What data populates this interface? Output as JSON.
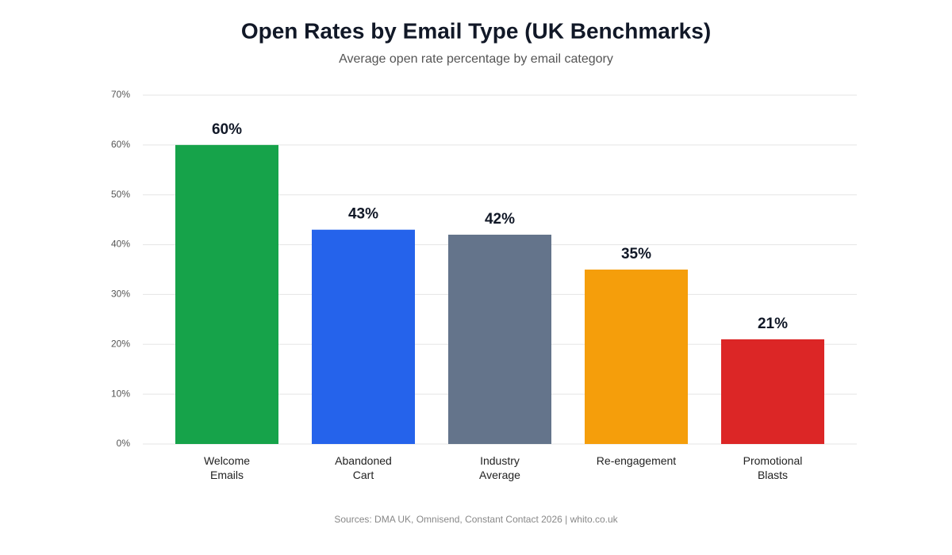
{
  "chart_data": {
    "type": "bar",
    "title": "Open Rates by Email Type (UK Benchmarks)",
    "subtitle": "Average open rate percentage by email category",
    "source": "Sources: DMA UK, Omnisend, Constant Contact 2026 | whito.co.uk",
    "categories": [
      "Welcome\nEmails",
      "Abandoned\nCart",
      "Industry\nAverage",
      "Re-engagement",
      "Promotional\nBlasts"
    ],
    "values": [
      60,
      43,
      42,
      35,
      21
    ],
    "value_labels": [
      "60%",
      "43%",
      "42%",
      "35%",
      "21%"
    ],
    "colors": [
      "#16a34a",
      "#2563eb",
      "#64748b",
      "#f59e0b",
      "#dc2626"
    ],
    "ylim": [
      0,
      70
    ],
    "yticks": [
      {
        "value": 0,
        "label": "0%"
      },
      {
        "value": 10,
        "label": "10%"
      },
      {
        "value": 20,
        "label": "20%"
      },
      {
        "value": 30,
        "label": "30%"
      },
      {
        "value": 40,
        "label": "40%"
      },
      {
        "value": 50,
        "label": "50%"
      },
      {
        "value": 60,
        "label": "60%"
      },
      {
        "value": 70,
        "label": "70%"
      }
    ],
    "grid": true
  }
}
